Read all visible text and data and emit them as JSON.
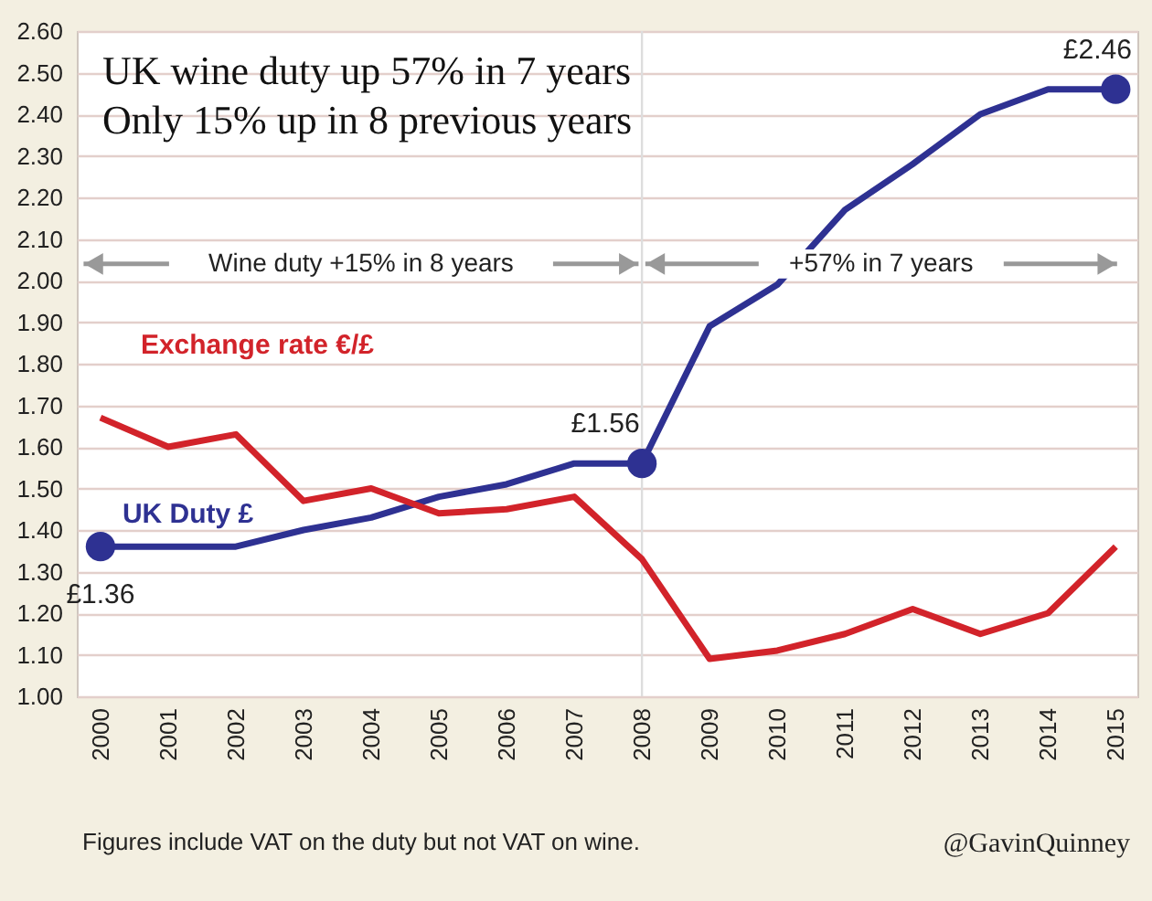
{
  "chart_data": {
    "type": "line",
    "title": "UK wine duty up 57% in 7 years\nOnly 15% up in 8 previous years",
    "x": [
      2000,
      2001,
      2002,
      2003,
      2004,
      2005,
      2006,
      2007,
      2008,
      2009,
      2010,
      2011,
      2012,
      2013,
      2014,
      2015
    ],
    "series": [
      {
        "name": "UK Duty £",
        "color": "#2e3192",
        "values": [
          1.36,
          1.36,
          1.36,
          1.4,
          1.43,
          1.48,
          1.51,
          1.56,
          1.56,
          1.89,
          1.99,
          2.17,
          2.28,
          2.4,
          2.46,
          2.46
        ]
      },
      {
        "name": "Exchange rate €/£",
        "color": "#d2232a",
        "values": [
          1.67,
          1.6,
          1.63,
          1.47,
          1.5,
          1.44,
          1.45,
          1.48,
          1.33,
          1.09,
          1.11,
          1.15,
          1.21,
          1.15,
          1.2,
          1.36
        ]
      }
    ],
    "xlim": [
      1999.65,
      2015.32
    ],
    "xticks": [
      2000,
      2001,
      2002,
      2003,
      2004,
      2005,
      2006,
      2007,
      2008,
      2009,
      2010,
      2011,
      2012,
      2013,
      2014,
      2015
    ],
    "ylim": [
      1.0,
      2.6
    ],
    "yticks": [
      {
        "value": 1.0,
        "label": "1.00"
      },
      {
        "value": 1.1,
        "label": "1.10"
      },
      {
        "value": 1.2,
        "label": "1.20"
      },
      {
        "value": 1.3,
        "label": "1.30"
      },
      {
        "value": 1.4,
        "label": "1.40"
      },
      {
        "value": 1.5,
        "label": "1.50"
      },
      {
        "value": 1.6,
        "label": "1.60"
      },
      {
        "value": 1.7,
        "label": "1.70"
      },
      {
        "value": 1.8,
        "label": "1.80"
      },
      {
        "value": 1.9,
        "label": "1.90"
      },
      {
        "value": 2.0,
        "label": "2.00"
      },
      {
        "value": 2.1,
        "label": "2.10"
      },
      {
        "value": 2.2,
        "label": "2.20"
      },
      {
        "value": 2.3,
        "label": "2.30"
      },
      {
        "value": 2.4,
        "label": "2.40"
      },
      {
        "value": 2.5,
        "label": "2.50"
      },
      {
        "value": 2.6,
        "label": "2.60"
      }
    ],
    "ref_lines": [
      {
        "axis": "x",
        "value": 2008,
        "color": "#dddddd"
      }
    ],
    "annotations": [
      "Wine duty +15% in 8 years",
      "+57% in 7 years",
      {
        "text": "£1.36",
        "x": 2000,
        "y": 1.36
      },
      {
        "text": "£1.56",
        "x": 2008,
        "y": 1.56
      },
      {
        "text": "£2.46",
        "x": 2015,
        "y": 2.46
      },
      "Figures include VAT on the duty but not VAT on wine.",
      "@GavinQuinney"
    ],
    "grid": "y",
    "marker": "none",
    "line_style": "solid"
  }
}
